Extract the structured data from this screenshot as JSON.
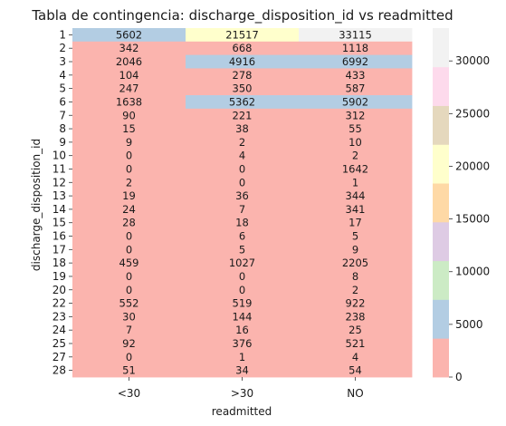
{
  "chart_data": {
    "type": "heatmap",
    "title": "Tabla de contingencia: discharge_disposition_id vs readmitted",
    "xlabel": "readmitted",
    "ylabel": "discharge_disposition_id",
    "x_categories": [
      "<30",
      ">30",
      "NO"
    ],
    "y_categories": [
      "1",
      "2",
      "3",
      "4",
      "5",
      "6",
      "7",
      "8",
      "9",
      "10",
      "11",
      "12",
      "13",
      "14",
      "15",
      "16",
      "17",
      "18",
      "19",
      "20",
      "22",
      "23",
      "24",
      "25",
      "27",
      "28"
    ],
    "values": [
      [
        5602,
        21517,
        33115
      ],
      [
        342,
        668,
        1118
      ],
      [
        2046,
        4916,
        6992
      ],
      [
        104,
        278,
        433
      ],
      [
        247,
        350,
        587
      ],
      [
        1638,
        5362,
        5902
      ],
      [
        90,
        221,
        312
      ],
      [
        15,
        38,
        55
      ],
      [
        9,
        2,
        10
      ],
      [
        0,
        4,
        2
      ],
      [
        0,
        0,
        1642
      ],
      [
        2,
        0,
        1
      ],
      [
        19,
        36,
        344
      ],
      [
        24,
        7,
        341
      ],
      [
        28,
        18,
        17
      ],
      [
        0,
        6,
        5
      ],
      [
        0,
        5,
        9
      ],
      [
        459,
        1027,
        2205
      ],
      [
        0,
        0,
        8
      ],
      [
        0,
        0,
        2
      ],
      [
        552,
        519,
        922
      ],
      [
        30,
        144,
        238
      ],
      [
        7,
        16,
        25
      ],
      [
        92,
        376,
        521
      ],
      [
        0,
        1,
        4
      ],
      [
        51,
        34,
        54
      ]
    ],
    "colorbar": {
      "vmin": 0,
      "vmax": 33115,
      "ticks": [
        0,
        5000,
        10000,
        15000,
        20000,
        25000,
        30000
      ],
      "palette": [
        "#fbb4ae",
        "#b3cde3",
        "#ccebc5",
        "#decbe4",
        "#fed9a6",
        "#ffffcc",
        "#e5d8bd",
        "#fddaec",
        "#f2f2f2"
      ]
    },
    "annotations": true,
    "grid": false
  }
}
